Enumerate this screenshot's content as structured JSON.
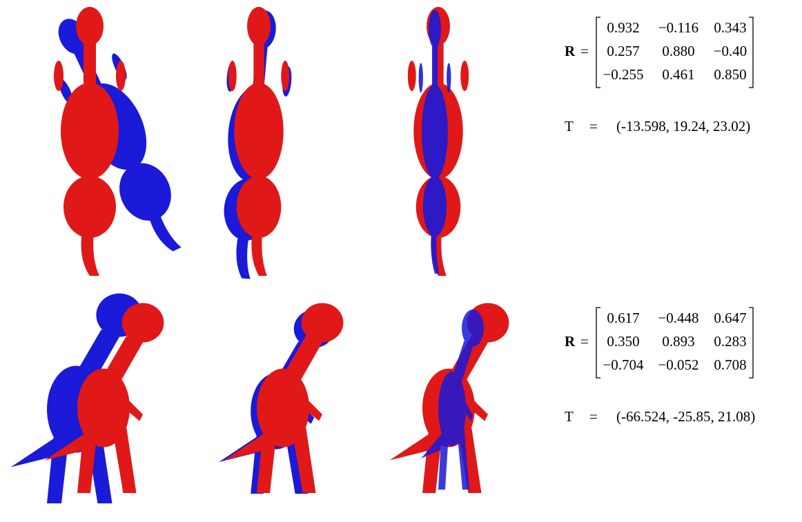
{
  "rows": [
    {
      "r_symbol": "R",
      "r_equals": "=",
      "R": [
        [
          "0.932",
          "−0.116",
          "0.343"
        ],
        [
          "0.257",
          "0.880",
          "−0.40"
        ],
        [
          "−0.255",
          "0.461",
          "0.850"
        ]
      ],
      "t_symbol": "T",
      "t_equals": "=",
      "T": "(-13.598, 19.24, 23.02)"
    },
    {
      "r_symbol": "R",
      "r_equals": "=",
      "R": [
        [
          "0.617",
          "−0.448",
          "0.647"
        ],
        [
          "0.350",
          "0.893",
          "0.283"
        ],
        [
          "−0.704",
          "−0.052",
          "0.708"
        ]
      ],
      "t_symbol": "T",
      "t_equals": "=",
      "T": "(-66.524, -25.85, 21.08)"
    }
  ]
}
